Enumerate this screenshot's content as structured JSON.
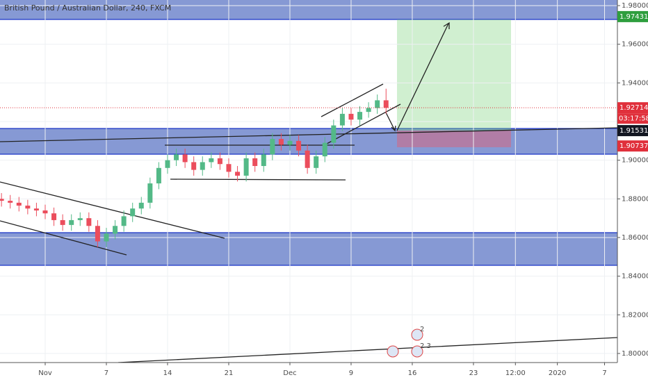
{
  "chart_data": {
    "type": "candlestick",
    "title": "British Pound / Australian Dollar, 240, FXCM",
    "up_color": "#53b987",
    "down_color": "#eb4d5c",
    "grid": true,
    "xlim": [
      -5.17,
      65.47
    ],
    "ylim": [
      1.7953,
      1.9829
    ],
    "xticks": [
      {
        "value": 0,
        "label": "Nov"
      },
      7,
      14,
      21,
      {
        "value": 28,
        "label": "Dec"
      },
      {
        "value": 35,
        "label": "9"
      },
      {
        "value": 42,
        "label": "16"
      },
      {
        "value": 49,
        "label": "23"
      },
      {
        "value": 53.8,
        "label": "12:00"
      },
      {
        "value": 58.6,
        "label": "2020"
      },
      {
        "value": 64,
        "label": "7"
      }
    ],
    "yticks": [
      {
        "value": 1.98,
        "label": "1.98000"
      },
      {
        "value": 1.96,
        "label": "1.96000"
      },
      {
        "value": 1.94,
        "label": "1.94000"
      },
      {
        "value": 1.92,
        "label": "1.92000"
      },
      {
        "value": 1.9,
        "label": "1.90000"
      },
      {
        "value": 1.88,
        "label": "1.88000"
      },
      {
        "value": 1.86,
        "label": "1.86000"
      },
      {
        "value": 1.84,
        "label": "1.84000"
      },
      {
        "value": 1.82,
        "label": "1.82000"
      },
      {
        "value": 1.8,
        "label": "1.80000"
      }
    ],
    "x": [
      -5,
      -4,
      -3,
      -2,
      -1,
      0,
      1,
      2,
      3,
      4,
      5,
      6,
      7,
      8,
      9,
      10,
      11,
      12,
      13,
      14,
      15,
      16,
      17,
      18,
      19,
      20,
      21,
      22,
      23,
      24,
      25,
      26,
      27,
      28,
      29,
      30,
      31,
      32,
      33,
      34,
      35,
      36,
      37,
      38,
      39
    ],
    "open": [
      1.88,
      1.879,
      1.878,
      1.8765,
      1.875,
      1.874,
      1.8725,
      1.869,
      1.8665,
      1.869,
      1.87,
      1.866,
      1.858,
      1.862,
      1.866,
      1.871,
      1.875,
      1.878,
      1.888,
      1.896,
      1.9,
      1.903,
      1.899,
      1.895,
      1.899,
      1.901,
      1.898,
      1.894,
      1.892,
      1.901,
      1.897,
      1.903,
      1.911,
      1.908,
      1.91,
      1.905,
      1.896,
      1.902,
      1.909,
      1.918,
      1.924,
      1.921,
      1.925,
      1.927,
      1.931
    ],
    "high": [
      1.883,
      1.882,
      1.881,
      1.8795,
      1.878,
      1.877,
      1.8755,
      1.872,
      1.872,
      1.873,
      1.873,
      1.869,
      1.865,
      1.869,
      1.874,
      1.878,
      1.881,
      1.891,
      1.899,
      1.903,
      1.906,
      1.906,
      1.902,
      1.902,
      1.904,
      1.904,
      1.901,
      1.897,
      1.904,
      1.904,
      1.906,
      1.914,
      1.914,
      1.913,
      1.913,
      1.908,
      1.905,
      1.912,
      1.921,
      1.927,
      1.927,
      1.928,
      1.93,
      1.934,
      1.937
    ],
    "low": [
      1.876,
      1.875,
      1.8735,
      1.872,
      1.871,
      1.8695,
      1.866,
      1.8635,
      1.8635,
      1.866,
      1.863,
      1.855,
      1.855,
      1.859,
      1.863,
      1.868,
      1.872,
      1.875,
      1.885,
      1.893,
      1.897,
      1.896,
      1.892,
      1.892,
      1.896,
      1.895,
      1.891,
      1.889,
      1.889,
      1.894,
      1.894,
      1.9,
      1.905,
      1.905,
      1.902,
      1.893,
      1.893,
      1.899,
      1.906,
      1.915,
      1.918,
      1.918,
      1.922,
      1.924,
      1.9241
    ],
    "close": [
      1.879,
      1.878,
      1.8765,
      1.875,
      1.874,
      1.8725,
      1.869,
      1.8665,
      1.869,
      1.87,
      1.866,
      1.858,
      1.862,
      1.866,
      1.871,
      1.875,
      1.878,
      1.888,
      1.896,
      1.9,
      1.903,
      1.899,
      1.895,
      1.899,
      1.901,
      1.898,
      1.894,
      1.892,
      1.901,
      1.897,
      1.903,
      1.911,
      1.908,
      1.91,
      1.905,
      1.896,
      1.902,
      1.909,
      1.918,
      1.924,
      1.921,
      1.925,
      1.927,
      1.931,
      1.9271
    ],
    "price_tags": [
      {
        "value": 1.97431,
        "label": "1.97431",
        "color": "#2e9e3e"
      },
      {
        "value": 1.92714,
        "label": "1.92714",
        "color": "#e0303b"
      },
      {
        "value": 1.91531,
        "label": "1.91531",
        "color": "#131722"
      },
      {
        "value": 1.90737,
        "label": "1.90737",
        "color": "#e0303b"
      }
    ],
    "countdown": "03:17:58",
    "event_labels": [
      "2",
      "2 3"
    ]
  }
}
